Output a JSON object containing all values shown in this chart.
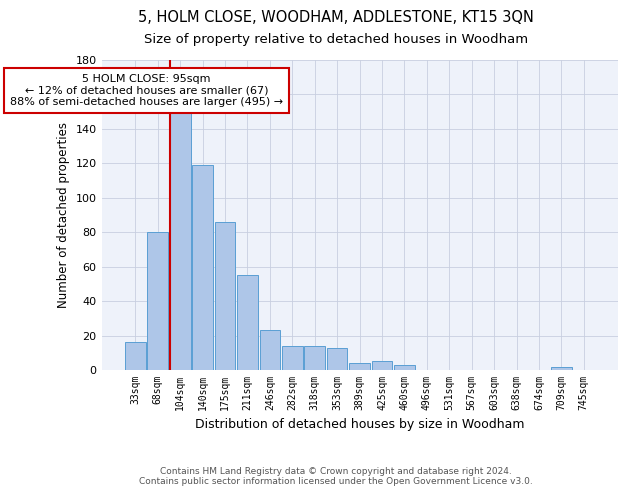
{
  "title": "5, HOLM CLOSE, WOODHAM, ADDLESTONE, KT15 3QN",
  "subtitle": "Size of property relative to detached houses in Woodham",
  "xlabel": "Distribution of detached houses by size in Woodham",
  "ylabel": "Number of detached properties",
  "bar_labels": [
    "33sqm",
    "68sqm",
    "104sqm",
    "140sqm",
    "175sqm",
    "211sqm",
    "246sqm",
    "282sqm",
    "318sqm",
    "353sqm",
    "389sqm",
    "425sqm",
    "460sqm",
    "496sqm",
    "531sqm",
    "567sqm",
    "603sqm",
    "638sqm",
    "674sqm",
    "709sqm",
    "745sqm"
  ],
  "bar_values": [
    16,
    80,
    150,
    119,
    86,
    55,
    23,
    14,
    14,
    13,
    4,
    5,
    3,
    0,
    0,
    0,
    0,
    0,
    0,
    2,
    0
  ],
  "bar_color": "#aec6e8",
  "bar_edge_color": "#5a9fd4",
  "ylim": [
    0,
    180
  ],
  "yticks": [
    0,
    20,
    40,
    60,
    80,
    100,
    120,
    140,
    160,
    180
  ],
  "vline_color": "#cc0000",
  "annotation_line1": "5 HOLM CLOSE: 95sqm",
  "annotation_line2": "← 12% of detached houses are smaller (67)",
  "annotation_line3": "88% of semi-detached houses are larger (495) →",
  "annotation_box_color": "#ffffff",
  "annotation_box_edge": "#cc0000",
  "footer1": "Contains HM Land Registry data © Crown copyright and database right 2024.",
  "footer2": "Contains public sector information licensed under the Open Government Licence v3.0.",
  "bg_color": "#eef2fa",
  "grid_color": "#c8cfe0",
  "title_fontsize": 10.5,
  "subtitle_fontsize": 9.5,
  "ylabel_fontsize": 8.5,
  "xlabel_fontsize": 9,
  "tick_fontsize": 7,
  "ytick_fontsize": 8,
  "footer_fontsize": 6.5,
  "annotation_fontsize": 8
}
